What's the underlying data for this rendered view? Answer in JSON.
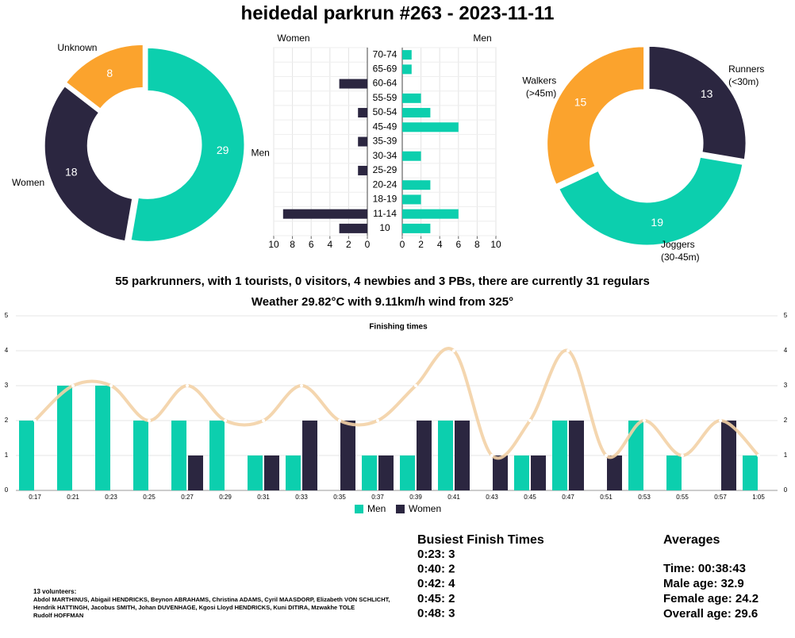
{
  "title": "heidedal parkrun #263 - 2023-11-11",
  "chart_data": [
    {
      "type": "donut",
      "categories": [
        [
          "Men"
        ],
        [
          "Women"
        ],
        [
          "Unknown"
        ]
      ],
      "values": [
        29,
        18,
        8
      ],
      "colors": [
        "#0ccfae",
        "#2b2640",
        "#fba32d"
      ]
    },
    {
      "type": "pyramid",
      "categories": [
        "70-74",
        "65-69",
        "60-64",
        "55-59",
        "50-54",
        "45-49",
        "35-39",
        "30-34",
        "25-29",
        "20-24",
        "18-19",
        "11-14",
        "10"
      ],
      "series": [
        {
          "name": "Women",
          "color": "#2b2640",
          "values": [
            0,
            0,
            3,
            0,
            1,
            0,
            1,
            0,
            1,
            0,
            0,
            9,
            3
          ]
        },
        {
          "name": "Men",
          "color": "#0ccfae",
          "values": [
            1,
            1,
            0,
            2,
            3,
            6,
            0,
            2,
            0,
            3,
            2,
            6,
            3
          ]
        }
      ],
      "xlim": [
        0,
        10
      ],
      "xticks": [
        0,
        2,
        4,
        6,
        8,
        10
      ],
      "grid": true
    },
    {
      "type": "donut",
      "categories": [
        [
          "Runners",
          "(<30m)"
        ],
        [
          "Joggers",
          "(30-45m)"
        ],
        [
          "Walkers",
          "(>45m)"
        ]
      ],
      "values": [
        13,
        19,
        15
      ],
      "colors": [
        "#2b2640",
        "#0ccfae",
        "#fba32d"
      ]
    },
    {
      "type": "bar",
      "title": "Finishing times",
      "categories": [
        "0:17",
        "0:21",
        "0:23",
        "0:25",
        "0:27",
        "0:29",
        "0:31",
        "0:33",
        "0:35",
        "0:37",
        "0:39",
        "0:41",
        "0:43",
        "0:45",
        "0:47",
        "0:51",
        "0:53",
        "0:55",
        "0:57",
        "1:05"
      ],
      "series": [
        {
          "name": "Men",
          "color": "#0ccfae",
          "values": [
            2,
            3,
            3,
            2,
            2,
            2,
            1,
            1,
            0,
            1,
            1,
            2,
            0,
            1,
            2,
            0,
            2,
            1,
            0,
            1
          ]
        },
        {
          "name": "Women",
          "color": "#2b2640",
          "values": [
            0,
            0,
            0,
            0,
            1,
            0,
            1,
            2,
            2,
            1,
            2,
            2,
            1,
            1,
            2,
            1,
            0,
            0,
            2,
            0
          ]
        }
      ],
      "line": {
        "color": "#f3d2a6",
        "values": [
          2,
          3,
          3,
          2,
          3,
          2,
          2,
          3,
          2,
          2,
          3,
          4,
          1,
          2,
          4,
          1,
          2,
          1,
          2,
          1
        ]
      },
      "ylim": [
        0,
        5
      ],
      "yticks": [
        0,
        1,
        2,
        3,
        4,
        5
      ],
      "grid": true,
      "legend": "bottom"
    }
  ],
  "summary": [
    "55 parkrunners, with 1 tourists, 0 visitors, 4 newbies and 3 PBs, there are currently 31 regulars",
    "Weather 29.82°C with 9.11km/h wind from 325°"
  ],
  "busiest": {
    "title": "Busiest Finish Times",
    "items": [
      "0:23: 3",
      "0:40: 2",
      "0:42: 4",
      "0:45: 2",
      "0:48: 3"
    ]
  },
  "averages": {
    "title": "Averages",
    "items": [
      "Time: 00:38:43",
      "Male age: 32.9",
      "Female age: 24.2",
      "Overall age: 29.6"
    ]
  },
  "volunteers": {
    "title": "13 volunteers:",
    "lines": [
      "Abdol MARTHINUS, Abigail HENDRICKS, Beynon ABRAHAMS, Christina ADAMS, Cyril MAASDORP, Elizabeth VON SCHLICHT,",
      "Hendrik HATTINGH, Jacobus SMITH, Johan DUVENHAGE, Kgosi Lloyd HENDRICKS, Kuni DITIRA, Mzwakhe TOLE",
      "Rudolf HOFFMAN"
    ]
  }
}
